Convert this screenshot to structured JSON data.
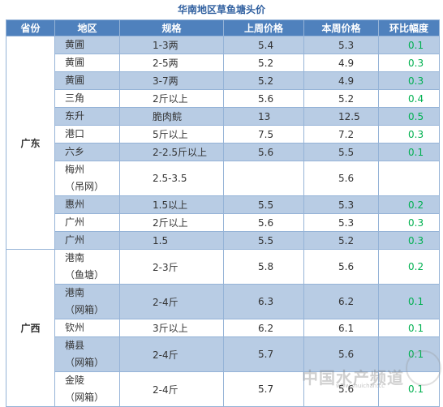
{
  "title": "华南地区草鱼塘头价",
  "headers": [
    "省份",
    "地区",
    "规格",
    "上周价格",
    "本周价格",
    "环比幅度"
  ],
  "provinces": [
    {
      "name": "广东",
      "rows": [
        {
          "region": [
            "黄圃"
          ],
          "spec": "1-3两",
          "last": "5.4",
          "this": "5.3",
          "chg": "0.1"
        },
        {
          "region": [
            "黄圃"
          ],
          "spec": "2-5两",
          "last": "5.2",
          "this": "4.9",
          "chg": "0.3"
        },
        {
          "region": [
            "黄圃"
          ],
          "spec": "3-7两",
          "last": "5.2",
          "this": "4.9",
          "chg": "0.3"
        },
        {
          "region": [
            "三角"
          ],
          "spec": "2斤以上",
          "last": "5.6",
          "this": "5.2",
          "chg": "0.4"
        },
        {
          "region": [
            "东升"
          ],
          "spec": "脆肉鲩",
          "last": "13",
          "this": "12.5",
          "chg": "0.5"
        },
        {
          "region": [
            "港口"
          ],
          "spec": "5斤以上",
          "last": "7.5",
          "this": "7.2",
          "chg": "0.3"
        },
        {
          "region": [
            "六乡"
          ],
          "spec": "2-2.5斤以上",
          "last": "5.6",
          "this": "5.5",
          "chg": "0.1"
        },
        {
          "region": [
            "梅州",
            "（吊网）"
          ],
          "spec": "2.5-3.5",
          "last": "",
          "this": "5.6",
          "chg": ""
        },
        {
          "region": [
            "惠州"
          ],
          "spec": "1.5以上",
          "last": "5.5",
          "this": "5.3",
          "chg": "0.2"
        },
        {
          "region": [
            "广州"
          ],
          "spec": "2斤以上",
          "last": "5.6",
          "this": "5.3",
          "chg": "0.3"
        },
        {
          "region": [
            "广州"
          ],
          "spec": "1.5",
          "last": "5.5",
          "this": "5.2",
          "chg": "0.3"
        }
      ]
    },
    {
      "name": "广西",
      "rows": [
        {
          "region": [
            "港南",
            "（鱼塘）"
          ],
          "spec": "2-3斤",
          "last": "5.8",
          "this": "5.6",
          "chg": "0.2"
        },
        {
          "region": [
            "港南",
            "（网箱）"
          ],
          "spec": "2-4斤",
          "last": "6.3",
          "this": "6.2",
          "chg": "0.1"
        },
        {
          "region": [
            "钦州"
          ],
          "spec": "3斤以上",
          "last": "6.2",
          "this": "6.1",
          "chg": "0.1"
        },
        {
          "region": [
            "横县",
            "（网箱）"
          ],
          "spec": "2-4斤",
          "last": "5.7",
          "this": "5.6",
          "chg": "0.1"
        },
        {
          "region": [
            "金陵",
            "（网箱）"
          ],
          "spec": "2-4斤",
          "last": "5.7",
          "this": "5.6",
          "chg": "0.1"
        }
      ]
    }
  ],
  "watermark": {
    "text": "中国水产频道",
    "sub": "www.shuichan.cc"
  },
  "colors": {
    "header_bg": "#4f81bd",
    "alt_row": "#b8cce4",
    "change": "#00b050",
    "title": "#2f5f9f"
  }
}
